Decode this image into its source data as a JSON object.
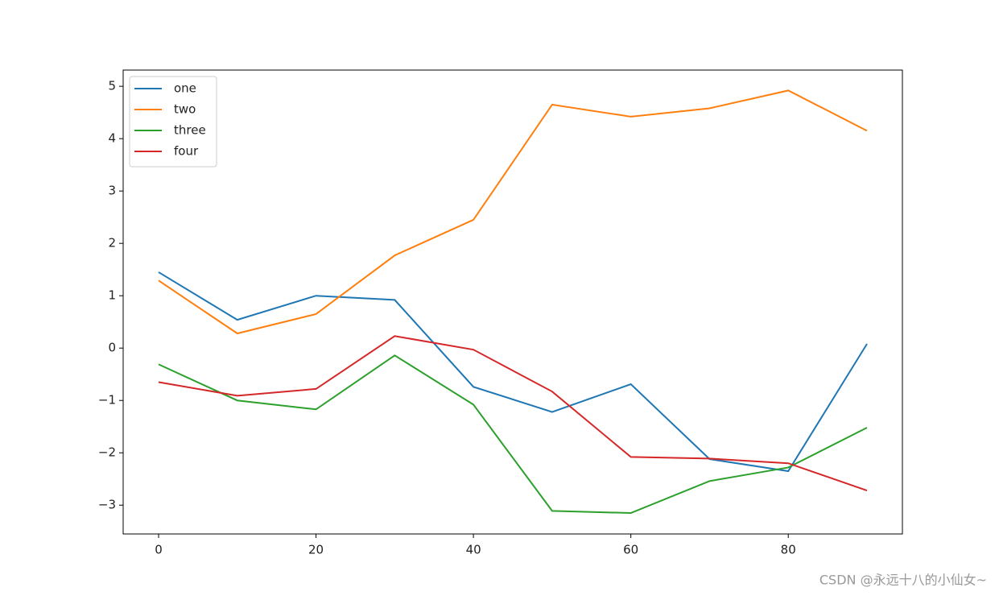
{
  "chart_data": {
    "type": "line",
    "x": [
      0,
      10,
      20,
      30,
      40,
      50,
      60,
      70,
      80,
      90
    ],
    "series": [
      {
        "name": "one",
        "color": "#1f77b4",
        "values": [
          1.45,
          0.54,
          1.0,
          0.92,
          -0.74,
          -1.22,
          -0.69,
          -2.12,
          -2.35,
          0.08
        ]
      },
      {
        "name": "two",
        "color": "#ff7f0e",
        "values": [
          1.29,
          0.28,
          0.65,
          1.77,
          2.45,
          4.65,
          4.42,
          4.58,
          4.92,
          4.15
        ]
      },
      {
        "name": "three",
        "color": "#2ca02c",
        "values": [
          -0.31,
          -1.0,
          -1.17,
          -0.14,
          -1.08,
          -3.11,
          -3.15,
          -2.54,
          -2.28,
          -1.52
        ]
      },
      {
        "name": "four",
        "color": "#d62728",
        "values": [
          -0.65,
          -0.91,
          -0.78,
          0.23,
          -0.03,
          -0.83,
          -2.08,
          -2.11,
          -2.2,
          -2.72
        ]
      }
    ],
    "xlim": [
      -4.5,
      94.5
    ],
    "xticks": [
      0,
      20,
      40,
      60,
      80
    ],
    "ylim": [
      -3.55,
      5.31
    ],
    "yticks": [
      {
        "value": -3,
        "label": "−3"
      },
      {
        "value": -2,
        "label": "−2"
      },
      {
        "value": -1,
        "label": "−1"
      },
      0,
      1,
      2,
      3,
      4,
      5
    ],
    "legend": "upper left",
    "watermark": "CSDN @永远十八的小仙女~"
  }
}
